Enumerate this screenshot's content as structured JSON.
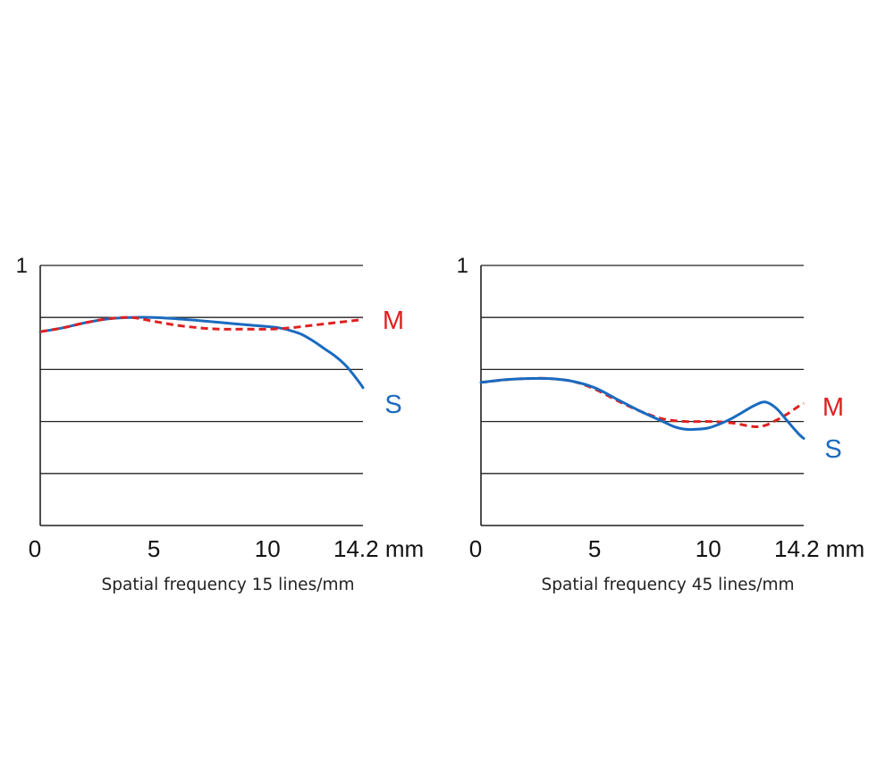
{
  "chart_data": [
    {
      "type": "line",
      "caption": "Spatial frequency 15 lines/mm",
      "x_unit": "mm",
      "xlim": [
        0,
        14.2
      ],
      "ylim": [
        0,
        1
      ],
      "y_tick_labels": [
        {
          "value": 1,
          "label": "1"
        }
      ],
      "y_gridlines": [
        0.2,
        0.4,
        0.6,
        0.8,
        1.0
      ],
      "x_tick_labels": [
        "0",
        "5",
        "10",
        "14.2 mm"
      ],
      "x_tick_values": [
        0,
        5,
        10,
        14.2
      ],
      "grid": true,
      "legend_placement": "right, at line ends",
      "series": [
        {
          "name": "S",
          "color": "#1a6bbf",
          "style": "solid",
          "x": [
            0,
            1,
            2,
            3,
            4,
            5,
            6,
            7,
            8,
            9,
            10,
            10.5,
            11,
            11.5,
            12,
            12.5,
            13,
            13.5,
            14,
            14.2
          ],
          "y": [
            0.745,
            0.76,
            0.78,
            0.795,
            0.8,
            0.8,
            0.795,
            0.788,
            0.78,
            0.772,
            0.765,
            0.76,
            0.75,
            0.735,
            0.71,
            0.68,
            0.65,
            0.61,
            0.555,
            0.53
          ]
        },
        {
          "name": "M",
          "color": "#e02020",
          "style": "dashed",
          "x": [
            0,
            1,
            2,
            3,
            4,
            5,
            6,
            7,
            8,
            9,
            10,
            11,
            12,
            13,
            14,
            14.2
          ],
          "y": [
            0.745,
            0.76,
            0.78,
            0.795,
            0.8,
            0.785,
            0.77,
            0.76,
            0.755,
            0.755,
            0.755,
            0.76,
            0.77,
            0.78,
            0.79,
            0.795
          ]
        }
      ]
    },
    {
      "type": "line",
      "caption": "Spatial frequency 45 lines/mm",
      "x_unit": "mm",
      "xlim": [
        0,
        14.2
      ],
      "ylim": [
        0,
        1
      ],
      "y_tick_labels": [
        {
          "value": 1,
          "label": "1"
        }
      ],
      "y_gridlines": [
        0.2,
        0.4,
        0.6,
        0.8,
        1.0
      ],
      "x_tick_labels": [
        "0",
        "5",
        "10",
        "14.2 mm"
      ],
      "x_tick_values": [
        0,
        5,
        10,
        14.2
      ],
      "grid": true,
      "legend_placement": "right, at line ends",
      "series": [
        {
          "name": "M",
          "color": "#e02020",
          "style": "dashed",
          "x": [
            0,
            1,
            2,
            3,
            4,
            5,
            6,
            7,
            8,
            9,
            10,
            11,
            12,
            12.5,
            13,
            13.5,
            14,
            14.2
          ],
          "y": [
            0.55,
            0.56,
            0.565,
            0.565,
            0.555,
            0.525,
            0.48,
            0.44,
            0.41,
            0.4,
            0.4,
            0.395,
            0.38,
            0.385,
            0.405,
            0.43,
            0.46,
            0.47
          ]
        },
        {
          "name": "S",
          "color": "#1a6bbf",
          "style": "solid",
          "x": [
            0,
            1,
            2,
            3,
            4,
            5,
            6,
            7,
            8,
            8.5,
            9,
            9.5,
            10,
            10.5,
            11,
            11.5,
            12,
            12.5,
            13,
            13.5,
            14,
            14.2
          ],
          "y": [
            0.55,
            0.56,
            0.565,
            0.565,
            0.555,
            0.53,
            0.485,
            0.44,
            0.4,
            0.38,
            0.37,
            0.37,
            0.375,
            0.39,
            0.41,
            0.435,
            0.46,
            0.475,
            0.45,
            0.4,
            0.35,
            0.335
          ]
        }
      ]
    }
  ]
}
